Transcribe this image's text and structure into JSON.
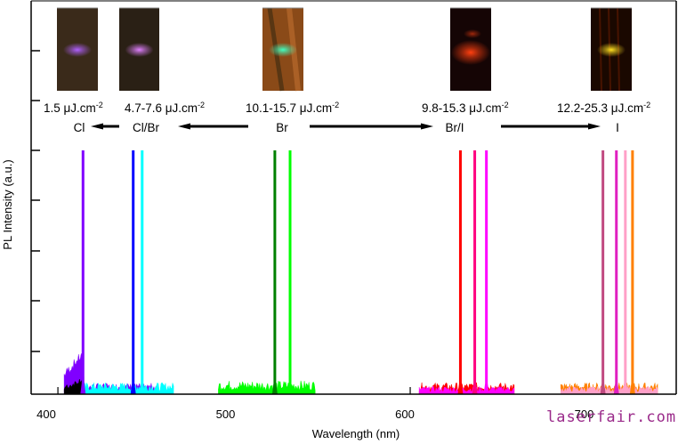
{
  "chart_data": {
    "type": "line",
    "title": "",
    "xlabel": "Wavelength (nm)",
    "ylabel": "PL Intensity (a.u.)",
    "xlim": [
      400,
      750
    ],
    "ylim": [
      0,
      1.08
    ],
    "xticks": [
      400,
      500,
      600,
      700
    ],
    "yticks": [
      0.2,
      0.4,
      0.6,
      0.8,
      1.0,
      1.2,
      1.4
    ],
    "ytick_labels_visible": false,
    "grid": false,
    "legend": "none",
    "noise_bands": [
      {
        "name": "Cl background",
        "color": "#8000ff",
        "x_range": [
          409,
          460
        ],
        "level": 0.08
      },
      {
        "name": "dark background",
        "color": "#000000",
        "x_range": [
          409,
          420
        ],
        "level": 0.05
      },
      {
        "name": "Cl/Br background",
        "color": "#00ffff",
        "x_range": [
          420,
          470
        ],
        "level": 0.03
      },
      {
        "name": "Br background",
        "color": "#00ff00",
        "x_range": [
          495,
          549
        ],
        "level": 0.035
      },
      {
        "name": "Br/I background red",
        "color": "#ff0000",
        "x_range": [
          607,
          660
        ],
        "level": 0.03
      },
      {
        "name": "Br/I background magenta",
        "color": "#ff00ff",
        "x_range": [
          607,
          660
        ],
        "level": 0.02
      },
      {
        "name": "I background orange",
        "color": "#ff8000",
        "x_range": [
          686,
          740
        ],
        "level": 0.03
      },
      {
        "name": "I background pink",
        "color": "#ffa0c8",
        "x_range": [
          686,
          740
        ],
        "level": 0.02
      }
    ],
    "series": [
      {
        "name": "Cl peak",
        "group": "Cl",
        "color": "#8000ff",
        "peak_nm": 419.5,
        "peak": 1.0
      },
      {
        "name": "Cl/Br peak 1",
        "group": "Cl/Br",
        "color": "#0000ff",
        "peak_nm": 447.5,
        "peak": 1.0
      },
      {
        "name": "Cl/Br peak 2",
        "group": "Cl/Br",
        "color": "#00ffff",
        "peak_nm": 452.5,
        "peak": 1.0
      },
      {
        "name": "Br peak 1",
        "group": "Br",
        "color": "#008000",
        "peak_nm": 526.5,
        "peak": 1.0
      },
      {
        "name": "Br peak 2",
        "group": "Br",
        "color": "#00ff00",
        "peak_nm": 535,
        "peak": 1.0
      },
      {
        "name": "Br/I peak 1",
        "group": "Br/I",
        "color": "#ff0000",
        "peak_nm": 630,
        "peak": 1.0
      },
      {
        "name": "Br/I peak 2",
        "group": "Br/I",
        "color": "#ff0080",
        "peak_nm": 638,
        "peak": 1.0
      },
      {
        "name": "Br/I peak 3",
        "group": "Br/I",
        "color": "#ff00ff",
        "peak_nm": 644.5,
        "peak": 1.0
      },
      {
        "name": "I peak 1",
        "group": "I",
        "color": "#c04a80",
        "peak_nm": 709.5,
        "peak": 1.0
      },
      {
        "name": "I peak 2",
        "group": "I",
        "color": "#e020c0",
        "peak_nm": 717,
        "peak": 1.0
      },
      {
        "name": "I peak 3",
        "group": "I",
        "color": "#ffa0c8",
        "peak_nm": 722,
        "peak": 1.0
      },
      {
        "name": "I peak 4",
        "group": "I",
        "color": "#ff8000",
        "peak_nm": 726,
        "peak": 1.0
      }
    ],
    "annotations": [
      {
        "id": "cl",
        "fluence": "1.5 μJ.cm",
        "sup": "-2",
        "label": "Cl",
        "x_nm": 418
      },
      {
        "id": "clbr",
        "fluence": "4.7-7.6 μJ.cm",
        "sup": "-2",
        "label": "Cl/Br",
        "x_nm": 450
      },
      {
        "id": "br",
        "fluence": "10.1-15.7 μJ.cm",
        "sup": "-2",
        "label": "Br",
        "x_nm": 530
      },
      {
        "id": "bri",
        "fluence": "9.8-15.3 μJ.cm",
        "sup": "-2",
        "label": "Br/I",
        "x_nm": 628
      },
      {
        "id": "i",
        "fluence": "12.2-25.3 μJ.cm",
        "sup": "-2",
        "label": "I",
        "x_nm": 720
      }
    ],
    "arrows": [
      {
        "from": "clbr",
        "to": "cl",
        "direction": "left"
      },
      {
        "from": "br",
        "to": "clbr",
        "direction": "left"
      },
      {
        "from": "br",
        "to": "bri",
        "direction": "right"
      },
      {
        "from": "bri",
        "to": "i",
        "direction": "right"
      }
    ],
    "insets": [
      {
        "id": "cl",
        "description": "microscope image, dark brown background with faint violet emission spot",
        "bg": "#3a2a1a",
        "glow": "#b060ff"
      },
      {
        "id": "clbr",
        "description": "microscope image, dark background with bright violet emission spot",
        "bg": "#2a2015",
        "glow": "#e080ff"
      },
      {
        "id": "br",
        "description": "microscope image, orange-brown fibers with cyan-green emission spot",
        "bg": "#8a4a18",
        "glow": "#40ffc0"
      },
      {
        "id": "bri",
        "description": "microscope image, black background with red-orange emission",
        "bg": "#150505",
        "glow": "#ff4010"
      },
      {
        "id": "i",
        "description": "microscope image, dark background with yellow-orange emission",
        "bg": "#1a0800",
        "glow": "#ffe020"
      }
    ]
  },
  "watermark": "laserfair.com"
}
